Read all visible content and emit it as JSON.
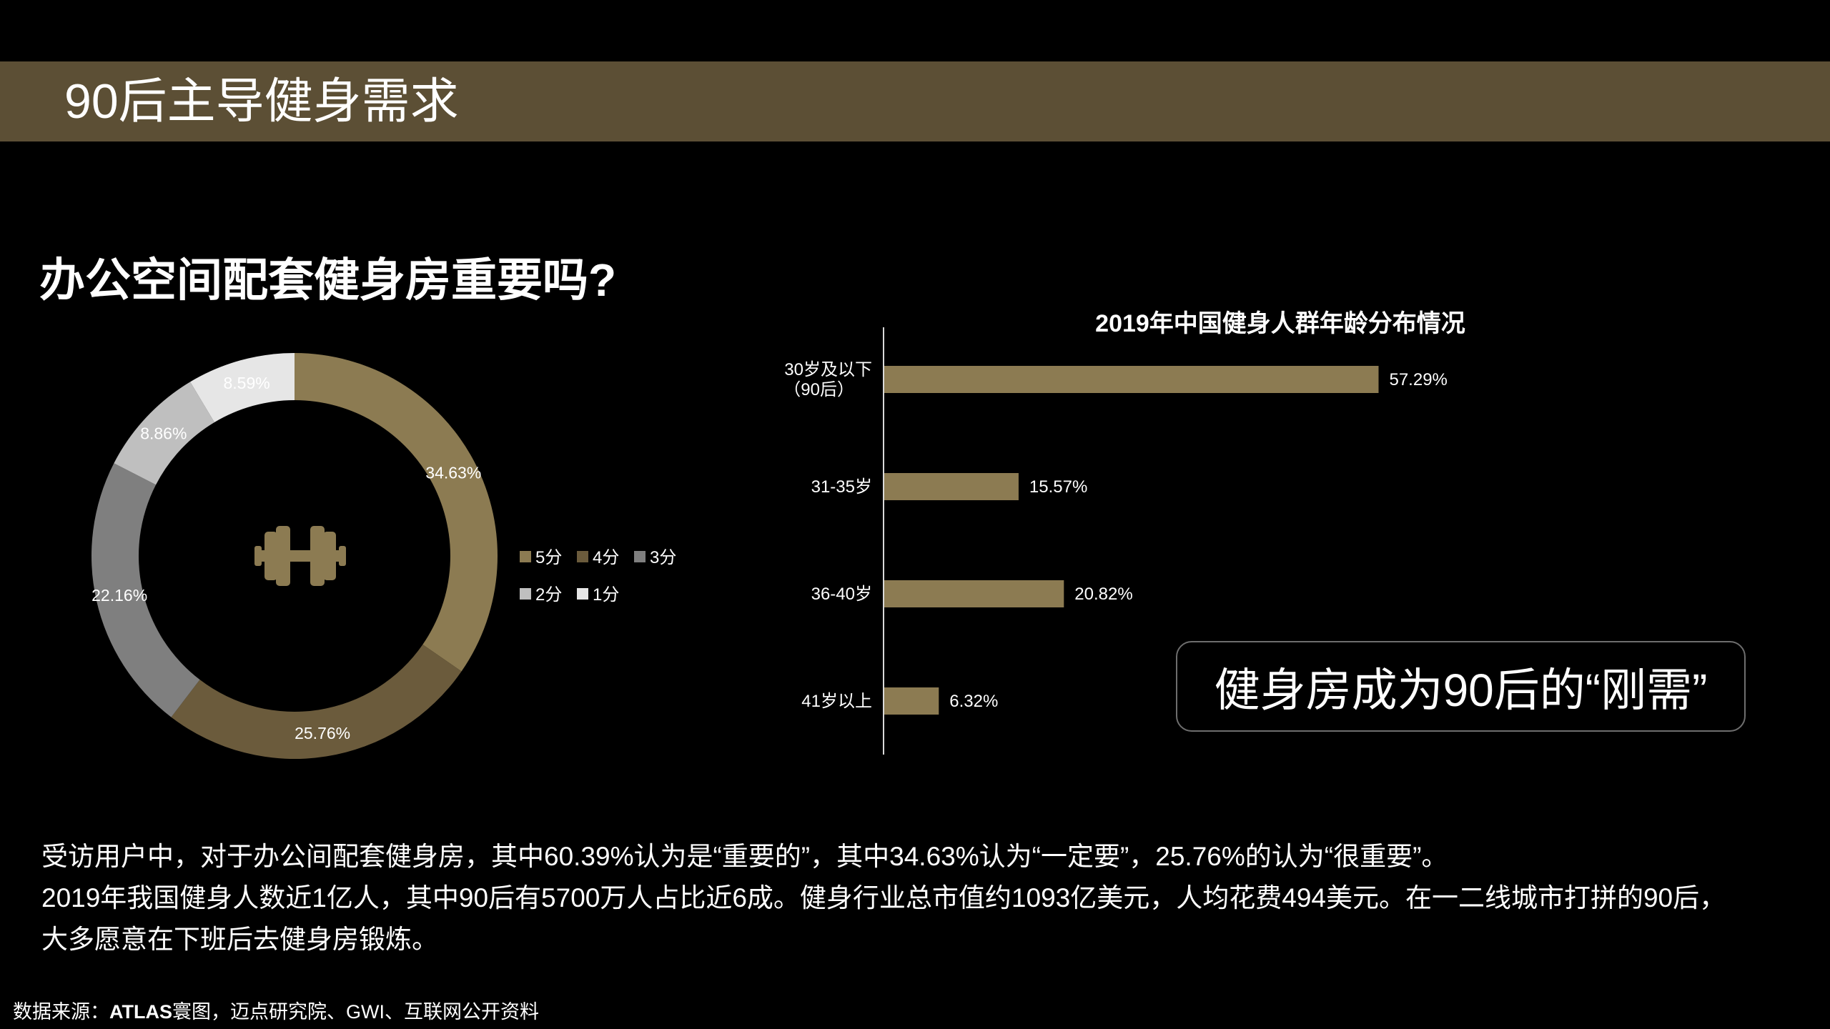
{
  "page": {
    "banner_title": "90后主导健身需求",
    "question": "办公空间配套健身房重要吗?",
    "callout": "健身房成为90后的“刚需”",
    "body_lines": [
      "受访用户中，对于办公间配套健身房，其中60.39%认为是“重要的”，其中34.63%认为“一定要”，25.76%的认为“很重要”。",
      "2019年我国健身人数近1亿人，其中90后有5700万人占比近6成。健身行业总市值约1093亿美元，人均花费494美元。在一二线城市打拼的90后，",
      "大多愿意在下班后去健身房锻炼。"
    ],
    "source_label": "数据来源：",
    "source_brand": "ATLAS",
    "source_rest": "寰图，迈点研究院、GWI、互联网公开资料",
    "icon": "dumbbell-icon",
    "colors": {
      "background": "#000000",
      "banner": "#5c4f35",
      "gold": "#8c7b52",
      "dark_gold": "#6b5b3c",
      "grey": "#7f7f7f",
      "light_grey": "#bfbfbf",
      "lightest_grey": "#e6e6e6"
    }
  },
  "chart_data": [
    {
      "type": "pie",
      "subtype": "donut",
      "categories": [
        "5分",
        "4分",
        "3分",
        "2分",
        "1分"
      ],
      "values": [
        34.63,
        25.76,
        22.16,
        8.86,
        8.59
      ],
      "labels": [
        "34.63%",
        "25.76%",
        "22.16%",
        "8.86%",
        "8.59%"
      ],
      "colors": [
        "#8c7b52",
        "#6b5b3c",
        "#7f7f7f",
        "#bfbfbf",
        "#e6e6e6"
      ],
      "legend": "right",
      "title": ""
    },
    {
      "type": "bar",
      "orientation": "horizontal",
      "title": "2019年中国健身人群年龄分布情况",
      "categories": [
        "30岁及以下（90后）",
        "31-35岁",
        "36-40岁",
        "41岁以上"
      ],
      "category_lines": [
        [
          "30岁及以下",
          "（90后）"
        ],
        [
          "31-35岁"
        ],
        [
          "36-40岁"
        ],
        [
          "41岁以上"
        ]
      ],
      "values": [
        57.29,
        15.57,
        20.82,
        6.32
      ],
      "labels": [
        "57.29%",
        "15.57%",
        "20.82%",
        "6.32%"
      ],
      "color": "#8c7b52",
      "grid": false
    }
  ]
}
